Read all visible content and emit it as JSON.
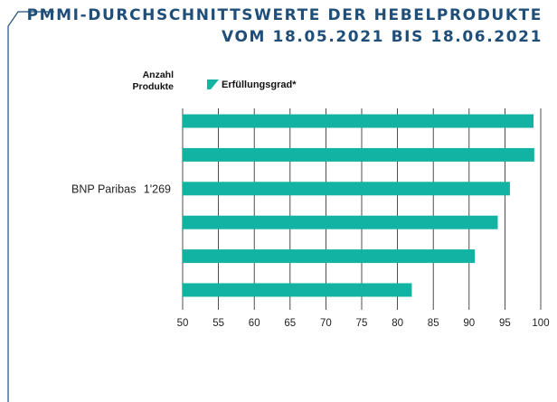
{
  "header": {
    "title_line1": "PMMI-DURCHSCHNITTSWERTE DER HEBELPRODUKTE",
    "title_line2": "VOM 18.05.2021 BIS 18.06.2021"
  },
  "column_header": {
    "line1": "Anzahl",
    "line2": "Produkte"
  },
  "legend": {
    "label": "Erfüllungsgrad*",
    "color": "#12b3a2"
  },
  "colors": {
    "bar": "#12b3a2",
    "title": "#1f4e79",
    "grid": "#222222",
    "frame": "#1f4e79"
  },
  "chart_data": {
    "type": "bar",
    "orientation": "horizontal",
    "categories": [
      "",
      "",
      "BNP Paribas",
      "",
      "",
      ""
    ],
    "counts": [
      "",
      "",
      "1'269",
      "",
      "",
      ""
    ],
    "series": [
      {
        "name": "Erfüllungsgrad*",
        "values": [
          99.0,
          99.1,
          95.7,
          94.0,
          90.8,
          82.0
        ]
      }
    ],
    "xlim": [
      50,
      100
    ],
    "xticks": [
      "50",
      "55",
      "60",
      "65",
      "70",
      "75",
      "80",
      "85",
      "90",
      "95",
      "100"
    ],
    "grid": true
  }
}
